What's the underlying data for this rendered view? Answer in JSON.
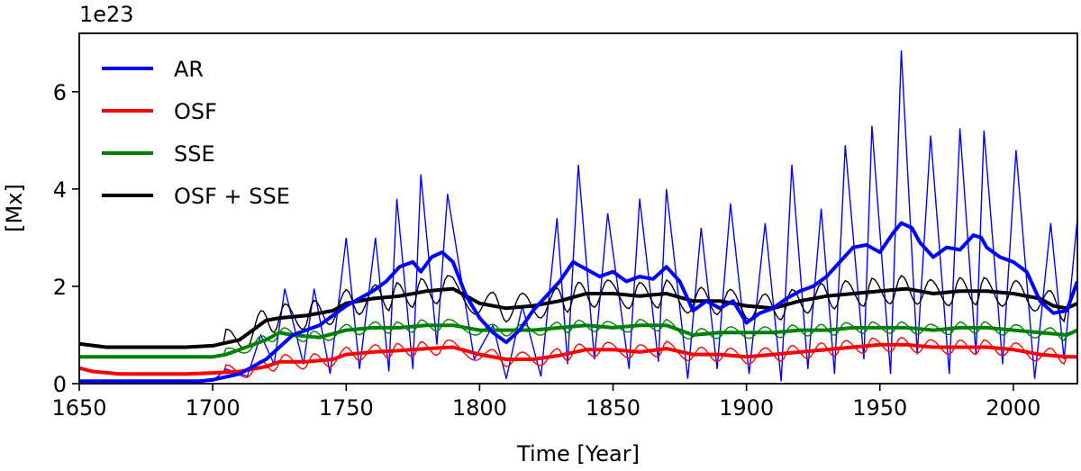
{
  "chart_data": {
    "type": "line",
    "title": "",
    "xlabel": "Time [Year]",
    "ylabel": "[Mx]",
    "y_offset_label": "1e23",
    "xlim": [
      1650,
      2024
    ],
    "ylim": [
      0,
      7.2
    ],
    "xticks": [
      1650,
      1700,
      1750,
      1800,
      1850,
      1900,
      1950,
      2000
    ],
    "xtick_labels": [
      "1650",
      "1700",
      "1750",
      "1800",
      "1850",
      "1900",
      "1950",
      "2000"
    ],
    "yticks": [
      0,
      2,
      4,
      6
    ],
    "ytick_labels": [
      "0",
      "2",
      "4",
      "6"
    ],
    "grid": false,
    "legend_position": "upper-left",
    "series": [
      {
        "name": "AR",
        "color": "#0000ff",
        "smoothed": [
          [
            1650,
            0.05
          ],
          [
            1695,
            0.05
          ],
          [
            1700,
            0.08
          ],
          [
            1710,
            0.2
          ],
          [
            1720,
            0.5
          ],
          [
            1730,
            1.0
          ],
          [
            1740,
            1.2
          ],
          [
            1750,
            1.6
          ],
          [
            1760,
            1.9
          ],
          [
            1765,
            2.1
          ],
          [
            1770,
            2.4
          ],
          [
            1775,
            2.5
          ],
          [
            1778,
            2.3
          ],
          [
            1782,
            2.6
          ],
          [
            1786,
            2.7
          ],
          [
            1790,
            2.5
          ],
          [
            1795,
            1.8
          ],
          [
            1800,
            1.35
          ],
          [
            1805,
            1.05
          ],
          [
            1810,
            0.85
          ],
          [
            1815,
            1.1
          ],
          [
            1820,
            1.5
          ],
          [
            1825,
            1.8
          ],
          [
            1830,
            2.1
          ],
          [
            1835,
            2.5
          ],
          [
            1840,
            2.35
          ],
          [
            1845,
            2.2
          ],
          [
            1850,
            2.3
          ],
          [
            1855,
            2.1
          ],
          [
            1860,
            2.2
          ],
          [
            1865,
            2.15
          ],
          [
            1870,
            2.4
          ],
          [
            1875,
            2.1
          ],
          [
            1880,
            1.5
          ],
          [
            1885,
            1.7
          ],
          [
            1890,
            1.55
          ],
          [
            1895,
            1.7
          ],
          [
            1900,
            1.25
          ],
          [
            1905,
            1.45
          ],
          [
            1910,
            1.55
          ],
          [
            1915,
            1.75
          ],
          [
            1920,
            1.9
          ],
          [
            1925,
            2.0
          ],
          [
            1930,
            2.2
          ],
          [
            1935,
            2.5
          ],
          [
            1940,
            2.8
          ],
          [
            1945,
            2.85
          ],
          [
            1950,
            2.7
          ],
          [
            1955,
            3.1
          ],
          [
            1958,
            3.3
          ],
          [
            1962,
            3.2
          ],
          [
            1965,
            2.9
          ],
          [
            1970,
            2.6
          ],
          [
            1975,
            2.8
          ],
          [
            1980,
            2.75
          ],
          [
            1985,
            3.05
          ],
          [
            1988,
            3.0
          ],
          [
            1990,
            2.8
          ],
          [
            1995,
            2.6
          ],
          [
            2000,
            2.5
          ],
          [
            2005,
            2.3
          ],
          [
            2010,
            1.7
          ],
          [
            2015,
            1.45
          ],
          [
            2020,
            1.5
          ],
          [
            2024,
            2.1
          ]
        ],
        "raw_cycle_maxima": [
          [
            1705,
            0.3
          ],
          [
            1718,
            1.0
          ],
          [
            1727,
            1.95
          ],
          [
            1738,
            1.95
          ],
          [
            1750,
            3.0
          ],
          [
            1761,
            3.0
          ],
          [
            1769,
            3.8
          ],
          [
            1778,
            4.3
          ],
          [
            1788,
            3.9
          ],
          [
            1805,
            1.2
          ],
          [
            1816,
            1.6
          ],
          [
            1829,
            3.4
          ],
          [
            1837,
            4.5
          ],
          [
            1848,
            3.5
          ],
          [
            1860,
            3.8
          ],
          [
            1870,
            4.0
          ],
          [
            1883,
            3.2
          ],
          [
            1894,
            3.7
          ],
          [
            1907,
            3.3
          ],
          [
            1917,
            4.5
          ],
          [
            1928,
            3.6
          ],
          [
            1937,
            4.9
          ],
          [
            1947,
            5.3
          ],
          [
            1958,
            6.85
          ],
          [
            1969,
            5.1
          ],
          [
            1980,
            5.25
          ],
          [
            1989,
            5.2
          ],
          [
            2001,
            4.8
          ],
          [
            2014,
            3.3
          ]
        ],
        "raw_cycle_minima": [
          [
            1713,
            0.15
          ],
          [
            1723,
            0.4
          ],
          [
            1734,
            0.4
          ],
          [
            1744,
            0.2
          ],
          [
            1755,
            0.3
          ],
          [
            1766,
            0.25
          ],
          [
            1775,
            0.3
          ],
          [
            1784,
            0.8
          ],
          [
            1798,
            0.5
          ],
          [
            1810,
            0.1
          ],
          [
            1823,
            0.15
          ],
          [
            1833,
            0.4
          ],
          [
            1843,
            0.5
          ],
          [
            1856,
            0.3
          ],
          [
            1867,
            0.45
          ],
          [
            1878,
            0.1
          ],
          [
            1889,
            0.3
          ],
          [
            1901,
            0.2
          ],
          [
            1913,
            0.05
          ],
          [
            1923,
            0.3
          ],
          [
            1933,
            0.2
          ],
          [
            1944,
            0.5
          ],
          [
            1954,
            0.2
          ],
          [
            1964,
            0.6
          ],
          [
            1976,
            0.2
          ],
          [
            1986,
            0.6
          ],
          [
            1996,
            0.4
          ],
          [
            2008,
            0.1
          ],
          [
            2019,
            0.5
          ]
        ]
      },
      {
        "name": "OSF",
        "color": "#ff0000",
        "smoothed": [
          [
            1650,
            0.32
          ],
          [
            1655,
            0.25
          ],
          [
            1665,
            0.2
          ],
          [
            1690,
            0.2
          ],
          [
            1700,
            0.22
          ],
          [
            1710,
            0.25
          ],
          [
            1720,
            0.35
          ],
          [
            1725,
            0.45
          ],
          [
            1735,
            0.45
          ],
          [
            1745,
            0.5
          ],
          [
            1750,
            0.6
          ],
          [
            1760,
            0.65
          ],
          [
            1770,
            0.68
          ],
          [
            1780,
            0.72
          ],
          [
            1790,
            0.75
          ],
          [
            1800,
            0.6
          ],
          [
            1810,
            0.5
          ],
          [
            1820,
            0.5
          ],
          [
            1830,
            0.58
          ],
          [
            1840,
            0.7
          ],
          [
            1850,
            0.7
          ],
          [
            1860,
            0.65
          ],
          [
            1870,
            0.72
          ],
          [
            1880,
            0.6
          ],
          [
            1890,
            0.6
          ],
          [
            1900,
            0.55
          ],
          [
            1910,
            0.6
          ],
          [
            1920,
            0.65
          ],
          [
            1930,
            0.7
          ],
          [
            1940,
            0.75
          ],
          [
            1950,
            0.8
          ],
          [
            1960,
            0.8
          ],
          [
            1970,
            0.75
          ],
          [
            1980,
            0.75
          ],
          [
            1990,
            0.75
          ],
          [
            2000,
            0.7
          ],
          [
            2010,
            0.6
          ],
          [
            2020,
            0.55
          ],
          [
            2024,
            0.55
          ]
        ]
      },
      {
        "name": "SSE",
        "color": "#008000",
        "smoothed": [
          [
            1650,
            0.55
          ],
          [
            1690,
            0.55
          ],
          [
            1700,
            0.55
          ],
          [
            1705,
            0.6
          ],
          [
            1710,
            0.7
          ],
          [
            1720,
            0.9
          ],
          [
            1725,
            1.05
          ],
          [
            1730,
            1.0
          ],
          [
            1740,
            0.95
          ],
          [
            1750,
            1.1
          ],
          [
            1760,
            1.15
          ],
          [
            1770,
            1.15
          ],
          [
            1780,
            1.2
          ],
          [
            1790,
            1.2
          ],
          [
            1800,
            1.1
          ],
          [
            1810,
            1.1
          ],
          [
            1820,
            1.1
          ],
          [
            1830,
            1.15
          ],
          [
            1840,
            1.2
          ],
          [
            1850,
            1.15
          ],
          [
            1860,
            1.2
          ],
          [
            1870,
            1.2
          ],
          [
            1880,
            1.0
          ],
          [
            1890,
            1.05
          ],
          [
            1900,
            1.05
          ],
          [
            1910,
            1.05
          ],
          [
            1920,
            1.1
          ],
          [
            1930,
            1.1
          ],
          [
            1940,
            1.15
          ],
          [
            1950,
            1.15
          ],
          [
            1960,
            1.15
          ],
          [
            1970,
            1.1
          ],
          [
            1980,
            1.15
          ],
          [
            1990,
            1.15
          ],
          [
            2000,
            1.1
          ],
          [
            2010,
            1.05
          ],
          [
            2020,
            1.0
          ],
          [
            2024,
            1.1
          ]
        ]
      },
      {
        "name": "OSF + SSE",
        "color": "#000000",
        "smoothed": [
          [
            1650,
            0.82
          ],
          [
            1660,
            0.75
          ],
          [
            1690,
            0.75
          ],
          [
            1700,
            0.78
          ],
          [
            1710,
            0.9
          ],
          [
            1715,
            1.1
          ],
          [
            1720,
            1.3
          ],
          [
            1725,
            1.35
          ],
          [
            1735,
            1.4
          ],
          [
            1745,
            1.5
          ],
          [
            1750,
            1.65
          ],
          [
            1760,
            1.75
          ],
          [
            1770,
            1.8
          ],
          [
            1780,
            1.9
          ],
          [
            1790,
            1.95
          ],
          [
            1795,
            1.8
          ],
          [
            1800,
            1.65
          ],
          [
            1810,
            1.55
          ],
          [
            1820,
            1.6
          ],
          [
            1830,
            1.7
          ],
          [
            1840,
            1.85
          ],
          [
            1850,
            1.85
          ],
          [
            1860,
            1.8
          ],
          [
            1870,
            1.85
          ],
          [
            1880,
            1.7
          ],
          [
            1890,
            1.7
          ],
          [
            1900,
            1.6
          ],
          [
            1910,
            1.55
          ],
          [
            1920,
            1.7
          ],
          [
            1930,
            1.8
          ],
          [
            1940,
            1.85
          ],
          [
            1950,
            1.9
          ],
          [
            1960,
            1.95
          ],
          [
            1970,
            1.85
          ],
          [
            1980,
            1.9
          ],
          [
            1990,
            1.9
          ],
          [
            2000,
            1.85
          ],
          [
            2010,
            1.75
          ],
          [
            2015,
            1.6
          ],
          [
            2020,
            1.55
          ],
          [
            2024,
            1.65
          ]
        ]
      }
    ]
  }
}
